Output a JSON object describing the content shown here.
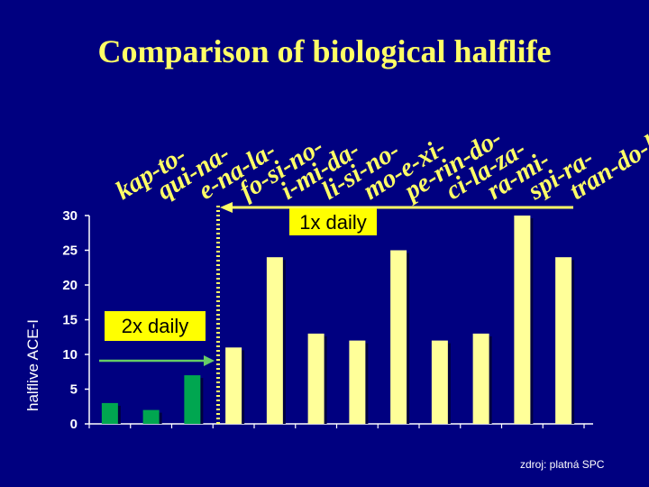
{
  "title": "Comparison of biological halflife",
  "source": "zdroj: platná SPC",
  "callout_once": "1x daily",
  "callout_twice": "2x daily",
  "chart_data": {
    "type": "bar",
    "categories": [
      [
        "kap-",
        "to-"
      ],
      [
        "qui-",
        "na-"
      ],
      [
        "e-",
        "na-",
        "la-"
      ],
      [
        "fo-",
        "si-",
        "no-"
      ],
      [
        "i-",
        "mi-",
        "da-"
      ],
      [
        "li-",
        "si-",
        "no-"
      ],
      [
        "mo-",
        "e-",
        "xi-"
      ],
      [
        "pe-",
        "rin-",
        "do-"
      ],
      [
        "ci-",
        "la-",
        "za-"
      ],
      [
        "ra-",
        "mi-"
      ],
      [
        "spi-",
        "ra-"
      ],
      [
        "tran-",
        "do-",
        "la-"
      ]
    ],
    "category_labels": [
      "kapto-",
      "quina-",
      "enala-",
      "fosino-",
      "imida-",
      "lisino-",
      "moexi-",
      "perindo-",
      "cilaza-",
      "rami-",
      "spira-",
      "trandola-"
    ],
    "values": [
      3,
      2,
      7,
      11,
      24,
      13,
      12,
      25,
      12,
      13,
      30,
      24
    ],
    "ylabel": "halflive ACE-I",
    "ylim": [
      0,
      30
    ],
    "yticks": [
      0,
      5,
      10,
      15,
      20,
      25,
      30
    ],
    "bar_colors": {
      "twice_daily": "#00A650",
      "once_daily": "#FFFF99"
    },
    "twice_daily_count": 3
  }
}
